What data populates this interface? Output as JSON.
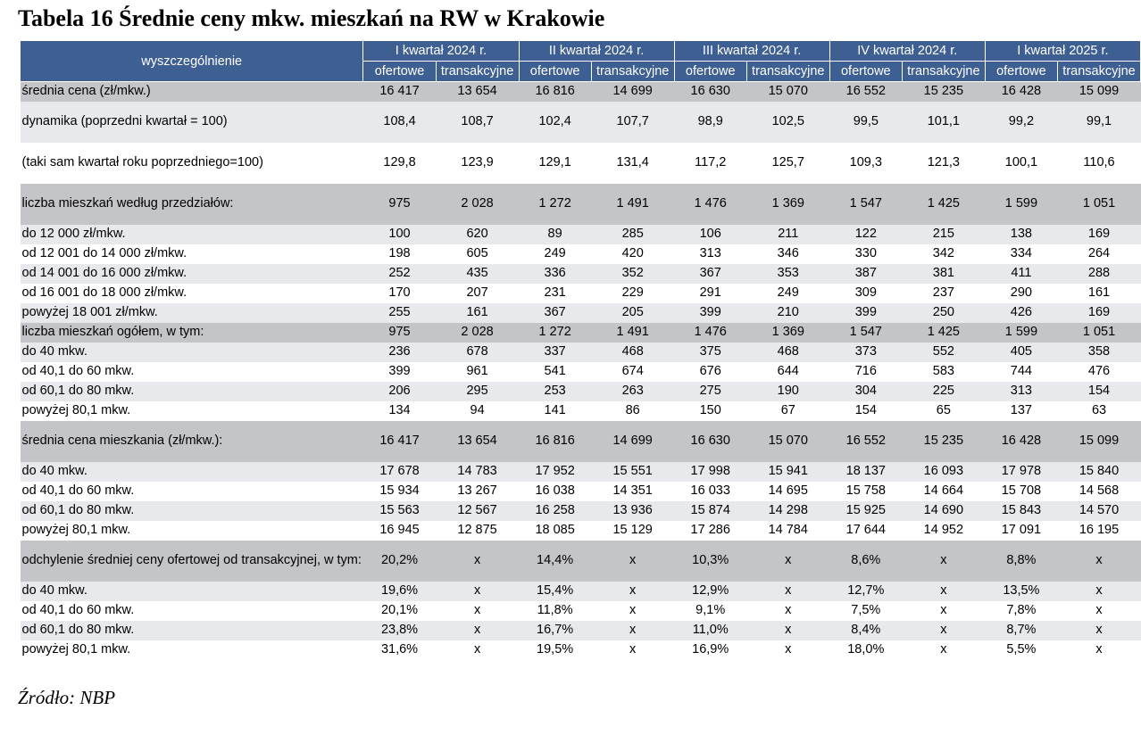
{
  "title": "Tabela 16 Średnie ceny mkw. mieszkań na RW w Krakowie",
  "header": {
    "first_col": "wyszczególnienie",
    "quarters": [
      "I kwartał 2024 r.",
      "II kwartał 2024 r.",
      "III kwartał 2024 r.",
      "IV kwartał 2024 r.",
      "I kwartał 2025 r."
    ],
    "sub_offer": "ofertowe",
    "sub_trans": "transakcyjne"
  },
  "rows": [
    {
      "label": "średnia cena (zł/mkw.)",
      "shade": "d",
      "values": [
        "16 417",
        "13 654",
        "16 816",
        "14 699",
        "16 630",
        "15 070",
        "16 552",
        "15 235",
        "16 428",
        "15 099"
      ]
    },
    {
      "label": "dynamika (poprzedni kwartał = 100)",
      "shade": "g",
      "values": [
        "108,4",
        "108,7",
        "102,4",
        "107,7",
        "98,9",
        "102,5",
        "99,5",
        "101,1",
        "99,2",
        "99,1"
      ]
    },
    {
      "label": "(taki sam kwartał roku poprzedniego=100)",
      "shade": "w",
      "values": [
        "129,8",
        "123,9",
        "129,1",
        "131,4",
        "117,2",
        "125,7",
        "109,3",
        "121,3",
        "100,1",
        "110,6"
      ]
    },
    {
      "label": "liczba mieszkań według przedziałów:",
      "shade": "d",
      "values": [
        "975",
        "2 028",
        "1 272",
        "1 491",
        "1 476",
        "1 369",
        "1 547",
        "1 425",
        "1 599",
        "1 051"
      ]
    },
    {
      "label": "do 12 000 zł/mkw.",
      "shade": "g",
      "values": [
        "100",
        "620",
        "89",
        "285",
        "106",
        "211",
        "122",
        "215",
        "138",
        "169"
      ]
    },
    {
      "label": "od 12 001 do 14 000 zł/mkw.",
      "shade": "w",
      "values": [
        "198",
        "605",
        "249",
        "420",
        "313",
        "346",
        "330",
        "342",
        "334",
        "264"
      ]
    },
    {
      "label": "od 14 001 do 16 000 zł/mkw.",
      "shade": "g",
      "values": [
        "252",
        "435",
        "336",
        "352",
        "367",
        "353",
        "387",
        "381",
        "411",
        "288"
      ]
    },
    {
      "label": "od 16 001 do 18 000 zł/mkw.",
      "shade": "w",
      "values": [
        "170",
        "207",
        "231",
        "229",
        "291",
        "249",
        "309",
        "237",
        "290",
        "161"
      ]
    },
    {
      "label": "powyżej 18 001 zł/mkw.",
      "shade": "g",
      "values": [
        "255",
        "161",
        "367",
        "205",
        "399",
        "210",
        "399",
        "250",
        "426",
        "169"
      ]
    },
    {
      "label": "liczba mieszkań ogółem, w tym:",
      "shade": "d",
      "values": [
        "975",
        "2 028",
        "1 272",
        "1 491",
        "1 476",
        "1 369",
        "1 547",
        "1 425",
        "1 599",
        "1 051"
      ]
    },
    {
      "label": "do 40 mkw.",
      "shade": "g",
      "values": [
        "236",
        "678",
        "337",
        "468",
        "375",
        "468",
        "373",
        "552",
        "405",
        "358"
      ]
    },
    {
      "label": "od 40,1 do 60 mkw.",
      "shade": "w",
      "values": [
        "399",
        "961",
        "541",
        "674",
        "676",
        "644",
        "716",
        "583",
        "744",
        "476"
      ]
    },
    {
      "label": "od 60,1 do 80 mkw.",
      "shade": "g",
      "values": [
        "206",
        "295",
        "253",
        "263",
        "275",
        "190",
        "304",
        "225",
        "313",
        "154"
      ]
    },
    {
      "label": "powyżej 80,1 mkw.",
      "shade": "w",
      "values": [
        "134",
        "94",
        "141",
        "86",
        "150",
        "67",
        "154",
        "65",
        "137",
        "63"
      ]
    },
    {
      "label": "średnia cena mieszkania (zł/mkw.):",
      "shade": "d",
      "values": [
        "16 417",
        "13 654",
        "16 816",
        "14 699",
        "16 630",
        "15 070",
        "16 552",
        "15 235",
        "16 428",
        "15 099"
      ]
    },
    {
      "label": "do 40 mkw.",
      "shade": "g",
      "values": [
        "17 678",
        "14 783",
        "17 952",
        "15 551",
        "17 998",
        "15 941",
        "18 137",
        "16 093",
        "17 978",
        "15 840"
      ]
    },
    {
      "label": "od 40,1 do 60 mkw.",
      "shade": "w",
      "values": [
        "15 934",
        "13 267",
        "16 038",
        "14 351",
        "16 033",
        "14 695",
        "15 758",
        "14 664",
        "15 708",
        "14 568"
      ]
    },
    {
      "label": "od 60,1 do 80 mkw.",
      "shade": "g",
      "values": [
        "15 563",
        "12 567",
        "16 258",
        "13 936",
        "15 874",
        "14 298",
        "15 925",
        "14 690",
        "15 843",
        "14 570"
      ]
    },
    {
      "label": "powyżej 80,1 mkw.",
      "shade": "w",
      "values": [
        "16 945",
        "12 875",
        "18 085",
        "15 129",
        "17 286",
        "14 784",
        "17 644",
        "14 952",
        "17 091",
        "16 195"
      ]
    },
    {
      "label": "odchylenie średniej ceny ofertowej od transakcyjnej, w tym:",
      "shade": "d",
      "values": [
        "20,2%",
        "x",
        "14,4%",
        "x",
        "10,3%",
        "x",
        "8,6%",
        "x",
        "8,8%",
        "x"
      ]
    },
    {
      "label": "do 40 mkw.",
      "shade": "g",
      "values": [
        "19,6%",
        "x",
        "15,4%",
        "x",
        "12,9%",
        "x",
        "12,7%",
        "x",
        "13,5%",
        "x"
      ]
    },
    {
      "label": "od 40,1 do 60 mkw.",
      "shade": "w",
      "values": [
        "20,1%",
        "x",
        "11,8%",
        "x",
        "9,1%",
        "x",
        "7,5%",
        "x",
        "7,8%",
        "x"
      ]
    },
    {
      "label": "od 60,1 do 80 mkw.",
      "shade": "g",
      "values": [
        "23,8%",
        "x",
        "16,7%",
        "x",
        "11,0%",
        "x",
        "8,4%",
        "x",
        "8,7%",
        "x"
      ]
    },
    {
      "label": "powyżej 80,1 mkw.",
      "shade": "w",
      "values": [
        "31,6%",
        "x",
        "19,5%",
        "x",
        "16,9%",
        "x",
        "18,0%",
        "x",
        "5,5%",
        "x"
      ]
    }
  ],
  "source": "Źródło: NBP",
  "colors": {
    "header_bg": "#3d5f92",
    "shade_dark": "#c4c5c8",
    "shade_light": "#e8e9ec"
  }
}
